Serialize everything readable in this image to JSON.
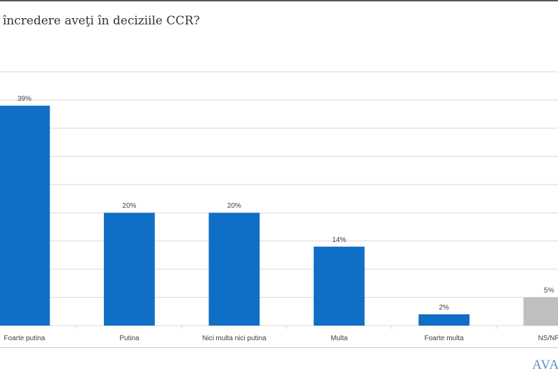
{
  "chart_data": {
    "type": "bar",
    "title": "încredere aveţi în deciziile CCR?",
    "categories": [
      "Foarte putina",
      "Putina",
      "Nici multa nici putina",
      "Multa",
      "Foarte multa",
      "NS/NR"
    ],
    "values": [
      39,
      20,
      20,
      14,
      2,
      5
    ],
    "data_labels": [
      "39%",
      "20%",
      "20%",
      "14%",
      "2%",
      "5%"
    ],
    "colors": [
      "#0F6FC6",
      "#0F6FC6",
      "#0F6FC6",
      "#0F6FC6",
      "#0F6FC6",
      "#BFBFBF"
    ],
    "ylim": [
      0,
      45
    ],
    "grid": true,
    "xlabel": "",
    "ylabel": ""
  },
  "logo": "AVAN"
}
